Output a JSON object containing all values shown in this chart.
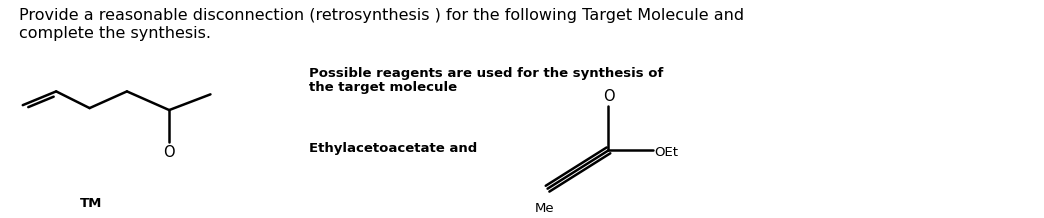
{
  "title_line1": "Provide a reasonable disconnection (retrosynthesis ) for the following Target Molecule and",
  "title_line2": "complete the synthesis.",
  "label_reagents": "Possible reagents are used for the synthesis of",
  "label_reagents2": "the target molecule",
  "label_ethyl": "Ethylacetoacetate and",
  "label_TM": "TM",
  "label_OEt": "OEt",
  "label_Me": "Me",
  "label_O1": "O",
  "label_O2": "O",
  "bg_color": "#ffffff",
  "text_color": "#000000",
  "title_fontsize": 11.5,
  "small_fontsize": 9.5,
  "bond_lw": 1.8
}
